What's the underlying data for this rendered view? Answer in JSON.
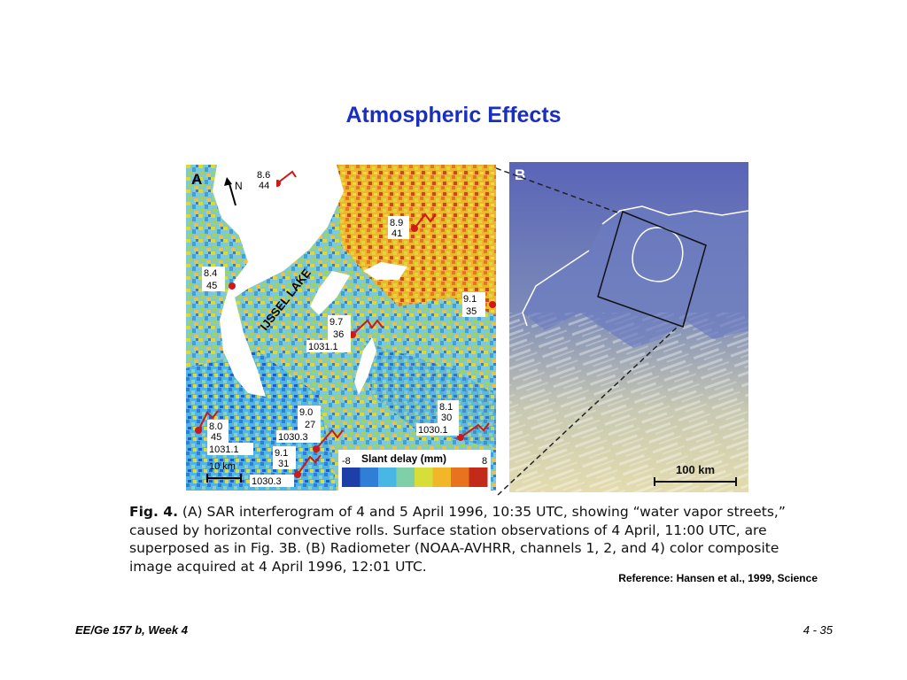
{
  "slide": {
    "title": "Atmospheric Effects",
    "reference": "Reference:  Hansen et al., 1999, Science",
    "footer_left": "EE/Ge 157 b, Week 4",
    "footer_right": "4 - 35"
  },
  "figure": {
    "panel_a": {
      "letter": "A",
      "north": "N",
      "lake_label": "IJSSEL LAKE",
      "scale": "10 km",
      "colorbar_title": "Slant delay (mm)",
      "colorbar_min": "-8",
      "colorbar_max": "8",
      "stations": [
        {
          "l1": "8.6",
          "l2": "44",
          "l3": ""
        },
        {
          "l1": "8.9",
          "l2": "41",
          "l3": ""
        },
        {
          "l1": "8.4",
          "l2": "45",
          "l3": ""
        },
        {
          "l1": "9.1",
          "l2": "35",
          "l3": ""
        },
        {
          "l1": "9.7",
          "l2": "36",
          "l3": "1031.1"
        },
        {
          "l1": "8.1",
          "l2": "30",
          "l3": "1030.1"
        },
        {
          "l1": "9.0",
          "l2": "27",
          "l3": "1030.3"
        },
        {
          "l1": "8.0",
          "l2": "45",
          "l3": "1031.1"
        },
        {
          "l1": "9.1",
          "l2": "31",
          "l3": "1030.3"
        }
      ]
    },
    "panel_b": {
      "letter": "B",
      "scale": "100 km"
    },
    "caption": {
      "fig_label": "Fig. 4.",
      "line1": "(A) SAR interferogram of 4 and 5 April 1996, 10:35 UTC, showing “water vapor streets,”",
      "line2": "caused by horizontal convective rolls. Surface station observations of 4 April, 11:00 UTC, are",
      "line3": "superposed as in Fig. 3B. (B) Radiometer (NOAA-AVHRR, channels 1, 2, and 4) color composite",
      "line4": "image acquired at 4 April 1996, 12:01 UTC."
    }
  },
  "colors": {
    "title": "#1a2fbf",
    "station_marker": "#d01818",
    "colorbar": [
      "#1c3fa8",
      "#2f7fd6",
      "#49b7e6",
      "#7fd0a8",
      "#d7de3a",
      "#f2b628",
      "#e8731e",
      "#c42a1a"
    ]
  }
}
